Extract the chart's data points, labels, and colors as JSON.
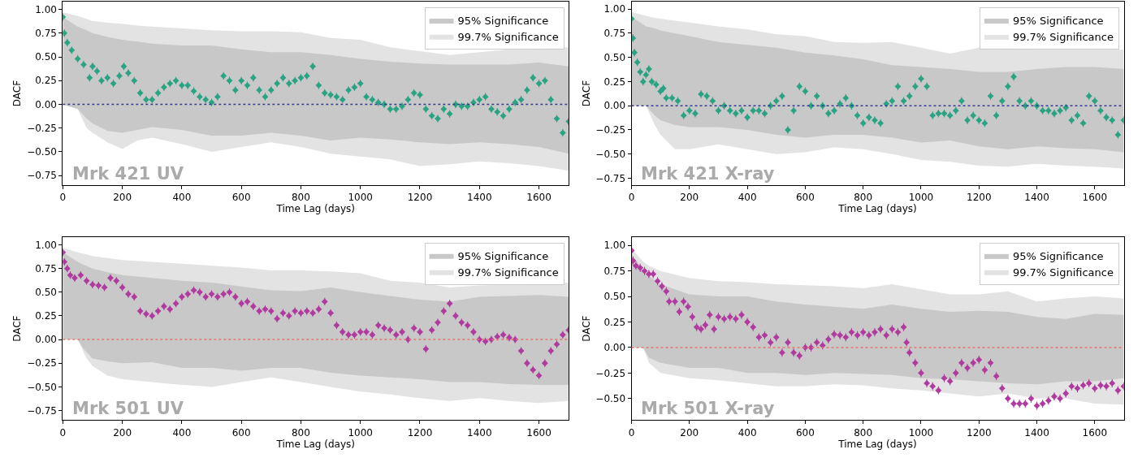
{
  "chart_data": [
    {
      "type": "scatter",
      "xlabel": "Time Lag (days)",
      "ylabel": "DACF",
      "xlim": [
        0,
        1700
      ],
      "xticks": [
        0,
        200,
        400,
        600,
        800,
        1000,
        1200,
        1400,
        1600
      ],
      "ylim": [
        -0.85,
        1.08
      ],
      "yticks": [
        {
          "value": -0.75,
          "label": "−0.75"
        },
        {
          "value": -0.5,
          "label": "−0.50"
        },
        {
          "value": -0.25,
          "label": "−0.25"
        },
        {
          "value": 0,
          "label": "0.00"
        },
        {
          "value": 0.25,
          "label": "0.25"
        },
        {
          "value": 0.5,
          "label": "0.50"
        },
        {
          "value": 0.75,
          "label": "0.75"
        },
        {
          "value": 1,
          "label": "1.00"
        }
      ],
      "grid": false,
      "legend": "top right",
      "annotations": [
        "Mrk 421 UV"
      ],
      "ref_lines": [
        {
          "axis": "y",
          "value": 0,
          "color": "#353a8c",
          "line_style": "dotted"
        }
      ],
      "series": [
        {
          "name": "99.7% Significance",
          "type": "area",
          "color": "#e3e3e3",
          "x": [
            0,
            50,
            80,
            100,
            150,
            200,
            250,
            300,
            400,
            500,
            600,
            700,
            800,
            900,
            1000,
            1100,
            1200,
            1300,
            1400,
            1500,
            1600,
            1700
          ],
          "values": [
            0.97,
            0.93,
            0.9,
            0.88,
            0.86,
            0.85,
            0.83,
            0.82,
            0.8,
            0.78,
            0.77,
            0.77,
            0.76,
            0.7,
            0.68,
            0.6,
            0.56,
            0.52,
            0.55,
            0.58,
            null,
            0.6
          ]
        },
        {
          "type": "area",
          "color": "#e3e3e3",
          "x": [
            0,
            50,
            80,
            100,
            150,
            200,
            250,
            300,
            400,
            500,
            600,
            700,
            800,
            900,
            1000,
            1100,
            1200,
            1300,
            1400,
            1500,
            1600,
            1700
          ],
          "values": [
            0.0,
            -0.05,
            -0.25,
            -0.3,
            -0.4,
            -0.47,
            -0.38,
            -0.35,
            -0.42,
            -0.5,
            -0.45,
            -0.4,
            -0.45,
            -0.52,
            -0.55,
            -0.58,
            -0.65,
            -0.63,
            -0.6,
            -0.62,
            -0.65,
            -0.7
          ]
        },
        {
          "name": "95% Significance",
          "type": "area",
          "color": "#c8c8c8",
          "x": [
            0,
            50,
            80,
            100,
            150,
            200,
            250,
            300,
            400,
            500,
            600,
            700,
            800,
            900,
            1000,
            1100,
            1200,
            1300,
            1400,
            1500,
            1600,
            1700
          ],
          "values": [
            0.92,
            0.82,
            0.78,
            0.75,
            0.71,
            0.68,
            0.66,
            0.64,
            0.62,
            0.62,
            0.58,
            0.55,
            0.55,
            0.52,
            0.48,
            0.45,
            0.43,
            0.42,
            0.42,
            0.42,
            0.44,
            0.4
          ]
        },
        {
          "type": "area",
          "color": "#c8c8c8",
          "x": [
            0,
            50,
            80,
            100,
            150,
            200,
            250,
            300,
            400,
            500,
            600,
            700,
            800,
            900,
            1000,
            1100,
            1200,
            1300,
            1400,
            1500,
            1600,
            1700
          ],
          "values": [
            0.0,
            -0.05,
            -0.15,
            -0.2,
            -0.28,
            -0.3,
            -0.27,
            -0.24,
            -0.27,
            -0.33,
            -0.33,
            -0.3,
            -0.33,
            -0.38,
            -0.35,
            -0.37,
            -0.4,
            -0.42,
            -0.4,
            -0.42,
            -0.45,
            -0.52
          ]
        },
        {
          "color": "#2aa383",
          "marker": "diamond",
          "x": [
            0,
            5,
            15,
            30,
            50,
            70,
            90,
            100,
            115,
            130,
            150,
            170,
            190,
            205,
            220,
            240,
            260,
            280,
            300,
            320,
            340,
            360,
            380,
            400,
            420,
            440,
            460,
            480,
            500,
            520,
            540,
            560,
            580,
            600,
            620,
            640,
            660,
            680,
            700,
            720,
            740,
            760,
            780,
            800,
            820,
            840,
            860,
            880,
            900,
            920,
            940,
            960,
            980,
            1000,
            1020,
            1040,
            1060,
            1080,
            1100,
            1120,
            1140,
            1160,
            1180,
            1200,
            1220,
            1240,
            1260,
            1280,
            1300,
            1320,
            1340,
            1360,
            1380,
            1400,
            1420,
            1440,
            1460,
            1480,
            1500,
            1520,
            1540,
            1560,
            1580,
            1600,
            1620,
            1640,
            1660,
            1680,
            1700
          ],
          "values": [
            0.92,
            0.75,
            0.65,
            0.57,
            0.48,
            0.42,
            0.28,
            0.4,
            0.35,
            0.25,
            0.28,
            0.22,
            0.3,
            0.4,
            0.33,
            0.25,
            0.12,
            0.05,
            0.05,
            0.12,
            0.18,
            0.22,
            0.25,
            0.2,
            0.2,
            0.14,
            0.08,
            0.05,
            0.02,
            0.08,
            0.3,
            0.25,
            0.15,
            0.25,
            0.2,
            0.28,
            0.15,
            0.08,
            0.15,
            0.22,
            0.28,
            0.22,
            0.25,
            0.28,
            0.3,
            0.4,
            0.2,
            0.12,
            0.1,
            0.08,
            0.05,
            0.15,
            0.18,
            0.22,
            0.08,
            0.05,
            0.02,
            0.0,
            -0.05,
            -0.05,
            -0.02,
            0.05,
            0.12,
            0.1,
            -0.05,
            -0.12,
            -0.15,
            -0.05,
            -0.1,
            0.0,
            -0.02,
            -0.02,
            0.02,
            0.05,
            0.08,
            -0.05,
            -0.08,
            -0.12,
            -0.05,
            0.02,
            0.05,
            0.15,
            0.28,
            0.22,
            0.25,
            0.05,
            -0.15,
            -0.3,
            -0.18
          ],
          "errors": [
            0.04,
            0.04,
            0.04,
            0.04,
            0.04,
            0.04,
            0.04,
            0.04,
            0.04,
            0.04,
            0.04,
            0.04,
            0.04,
            0.04,
            0.04,
            0.04,
            0.04,
            0.04,
            0.04,
            0.04,
            0.04,
            0.04,
            0.04,
            0.04,
            0.04,
            0.04,
            0.04,
            0.04,
            0.04,
            0.04,
            0.04,
            0.04,
            0.04,
            0.04,
            0.04,
            0.04,
            0.04,
            0.04,
            0.04,
            0.04,
            0.04,
            0.04,
            0.04,
            0.04,
            0.04,
            0.04,
            0.04,
            0.04,
            0.04,
            0.04,
            0.04,
            0.04,
            0.04,
            0.04,
            0.04,
            0.04,
            0.04,
            0.04,
            0.04,
            0.04,
            0.04,
            0.04,
            0.04,
            0.04,
            0.04,
            0.04,
            0.04,
            0.04,
            0.04,
            0.04,
            0.04,
            0.04,
            0.04,
            0.04,
            0.04,
            0.04,
            0.04,
            0.04,
            0.04,
            0.04,
            0.04,
            0.04,
            0.04,
            0.04,
            0.04,
            0.04,
            0.04,
            0.04,
            0.04
          ]
        }
      ]
    },
    {
      "type": "scatter",
      "xlabel": "Time Lag (days)",
      "ylabel": "DACF",
      "xlim": [
        0,
        1700
      ],
      "xticks": [
        0,
        200,
        400,
        600,
        800,
        1000,
        1200,
        1400,
        1600
      ],
      "ylim": [
        -0.82,
        1.075
      ],
      "yticks": [
        {
          "value": -0.75,
          "label": "−0.75"
        },
        {
          "value": -0.5,
          "label": "−0.50"
        },
        {
          "value": -0.25,
          "label": "−0.25"
        },
        {
          "value": 0,
          "label": "0.00"
        },
        {
          "value": 0.25,
          "label": "0.25"
        },
        {
          "value": 0.5,
          "label": "0.50"
        },
        {
          "value": 0.75,
          "label": "0.75"
        },
        {
          "value": 1,
          "label": "1.00"
        }
      ],
      "grid": false,
      "legend": "top right",
      "annotations": [
        "Mrk 421 X-ray"
      ],
      "ref_lines": [
        {
          "axis": "y",
          "value": 0,
          "color": "#353a8c",
          "line_style": "dotted"
        }
      ],
      "series": [
        {
          "name": "99.7% Significance",
          "type": "area",
          "color": "#e3e3e3",
          "x": [
            0,
            50,
            80,
            100,
            150,
            200,
            300,
            400,
            500,
            600,
            700,
            800,
            900,
            1000,
            1100,
            1200,
            1300,
            1400,
            1500,
            1600,
            1700
          ],
          "values": [
            0.97,
            0.93,
            0.91,
            0.9,
            0.88,
            0.86,
            0.82,
            0.79,
            0.74,
            0.72,
            0.66,
            0.65,
            0.66,
            0.6,
            0.54,
            0.6,
            null,
            null,
            null,
            null,
            0.58
          ]
        },
        {
          "type": "area",
          "color": "#e3e3e3",
          "x": [
            0,
            50,
            80,
            100,
            150,
            200,
            300,
            400,
            500,
            600,
            700,
            800,
            900,
            1000,
            1100,
            1200,
            1300,
            1400,
            1500,
            1600,
            1700
          ],
          "values": [
            0.0,
            0.0,
            -0.2,
            -0.3,
            -0.45,
            -0.45,
            -0.4,
            -0.45,
            -0.5,
            -0.48,
            -0.43,
            -0.45,
            -0.5,
            -0.56,
            -0.58,
            -0.62,
            -0.63,
            -0.6,
            -0.62,
            -0.63,
            -0.65
          ]
        },
        {
          "name": "95% Significance",
          "type": "area",
          "color": "#c8c8c8",
          "x": [
            0,
            50,
            80,
            100,
            150,
            200,
            300,
            400,
            500,
            600,
            700,
            800,
            900,
            1000,
            1100,
            1200,
            1300,
            1400,
            1500,
            1600,
            1700
          ],
          "values": [
            0.92,
            0.82,
            0.8,
            0.78,
            0.75,
            0.72,
            0.66,
            0.63,
            0.6,
            0.55,
            0.52,
            0.48,
            0.42,
            0.4,
            0.38,
            0.35,
            0.35,
            0.38,
            0.4,
            0.4,
            0.38
          ]
        },
        {
          "type": "area",
          "color": "#c8c8c8",
          "x": [
            0,
            50,
            80,
            100,
            150,
            200,
            300,
            400,
            500,
            600,
            700,
            800,
            900,
            1000,
            1100,
            1200,
            1300,
            1400,
            1500,
            1600,
            1700
          ],
          "values": [
            0.0,
            0.0,
            -0.1,
            -0.15,
            -0.2,
            -0.22,
            -0.22,
            -0.25,
            -0.3,
            -0.33,
            -0.3,
            -0.3,
            -0.33,
            -0.38,
            -0.36,
            -0.42,
            -0.45,
            -0.42,
            -0.44,
            -0.45,
            -0.48
          ]
        },
        {
          "color": "#2aa383",
          "marker": "diamond",
          "x": [
            0,
            5,
            10,
            20,
            30,
            40,
            50,
            60,
            70,
            85,
            100,
            110,
            120,
            140,
            160,
            180,
            200,
            220,
            240,
            260,
            280,
            300,
            320,
            340,
            360,
            380,
            400,
            420,
            440,
            460,
            480,
            500,
            520,
            540,
            560,
            580,
            600,
            620,
            640,
            660,
            680,
            700,
            720,
            740,
            760,
            780,
            800,
            820,
            840,
            860,
            880,
            900,
            920,
            940,
            960,
            980,
            1000,
            1020,
            1040,
            1060,
            1080,
            1100,
            1120,
            1140,
            1160,
            1180,
            1200,
            1220,
            1240,
            1260,
            1280,
            1300,
            1320,
            1340,
            1360,
            1380,
            1400,
            1420,
            1440,
            1460,
            1480,
            1500,
            1520,
            1540,
            1560,
            1580,
            1600,
            1620,
            1640,
            1660,
            1680,
            1700
          ],
          "values": [
            0.9,
            0.7,
            0.55,
            0.45,
            0.35,
            0.25,
            0.32,
            0.38,
            0.25,
            0.22,
            0.15,
            0.18,
            0.08,
            0.08,
            0.05,
            -0.1,
            -0.05,
            -0.08,
            0.12,
            0.1,
            0.05,
            -0.05,
            0.0,
            -0.05,
            -0.08,
            -0.05,
            -0.12,
            -0.05,
            -0.05,
            -0.08,
            0.0,
            0.05,
            0.1,
            -0.25,
            -0.05,
            0.2,
            0.15,
            0.0,
            0.1,
            0.0,
            -0.08,
            -0.05,
            0.02,
            0.08,
            0.0,
            -0.1,
            -0.18,
            -0.12,
            -0.15,
            -0.18,
            0.02,
            0.05,
            0.2,
            0.05,
            0.1,
            0.2,
            0.28,
            0.2,
            -0.1,
            -0.08,
            -0.08,
            -0.1,
            -0.05,
            0.05,
            -0.15,
            -0.1,
            -0.15,
            -0.18,
            0.1,
            -0.1,
            0.05,
            0.2,
            0.3,
            0.05,
            0.0,
            0.05,
            0.0,
            -0.05,
            -0.05,
            -0.08,
            -0.05,
            -0.02,
            -0.15,
            -0.1,
            -0.18,
            0.1,
            0.05,
            -0.05,
            -0.12,
            -0.15,
            -0.3,
            -0.15
          ],
          "errors": [
            0.04,
            0.04,
            0.04,
            0.04,
            0.04,
            0.04,
            0.04,
            0.04,
            0.04,
            0.04,
            0.04,
            0.04,
            0.04,
            0.04,
            0.04,
            0.04,
            0.04,
            0.04,
            0.04,
            0.04,
            0.04,
            0.04,
            0.04,
            0.04,
            0.04,
            0.04,
            0.04,
            0.04,
            0.04,
            0.04,
            0.04,
            0.04,
            0.04,
            0.04,
            0.04,
            0.04,
            0.04,
            0.04,
            0.04,
            0.04,
            0.04,
            0.04,
            0.04,
            0.04,
            0.04,
            0.04,
            0.04,
            0.04,
            0.04,
            0.04,
            0.04,
            0.04,
            0.04,
            0.04,
            0.04,
            0.04,
            0.04,
            0.04,
            0.04,
            0.04,
            0.04,
            0.04,
            0.04,
            0.04,
            0.04,
            0.04,
            0.04,
            0.04,
            0.04,
            0.04,
            0.04,
            0.04,
            0.04,
            0.04,
            0.04,
            0.04,
            0.04,
            0.04,
            0.04,
            0.04,
            0.04,
            0.04,
            0.04,
            0.04,
            0.04,
            0.04,
            0.04,
            0.04,
            0.04,
            0.04,
            0.04,
            0.04
          ]
        }
      ]
    },
    {
      "type": "scatter",
      "xlabel": "Time Lag (days)",
      "ylabel": "DACF",
      "xlim": [
        0,
        1700
      ],
      "xticks": [
        0,
        200,
        400,
        600,
        800,
        1000,
        1200,
        1400,
        1600
      ],
      "ylim": [
        -0.85,
        1.08
      ],
      "yticks": [
        {
          "value": -0.75,
          "label": "−0.75"
        },
        {
          "value": -0.5,
          "label": "−0.50"
        },
        {
          "value": -0.25,
          "label": "−0.25"
        },
        {
          "value": 0,
          "label": "0.00"
        },
        {
          "value": 0.25,
          "label": "0.25"
        },
        {
          "value": 0.5,
          "label": "0.50"
        },
        {
          "value": 0.75,
          "label": "0.75"
        },
        {
          "value": 1,
          "label": "1.00"
        }
      ],
      "grid": false,
      "legend": "top right",
      "annotations": [
        "Mrk 501 UV"
      ],
      "ref_lines": [
        {
          "axis": "y",
          "value": 0,
          "color": "#e8736a",
          "line_style": "dotted"
        }
      ],
      "series": [
        {
          "name": "99.7% Significance",
          "type": "area",
          "color": "#e3e3e3",
          "x": [
            0,
            50,
            80,
            100,
            150,
            200,
            300,
            400,
            500,
            600,
            700,
            800,
            900,
            1000,
            1100,
            1200,
            1300,
            1400,
            1500,
            1600,
            1700
          ],
          "values": [
            0.97,
            0.92,
            0.9,
            0.88,
            0.86,
            0.84,
            0.82,
            0.8,
            0.78,
            0.76,
            0.73,
            0.73,
            0.72,
            0.7,
            0.62,
            0.6,
            0.55,
            0.57,
            null,
            null,
            0.6
          ]
        },
        {
          "type": "area",
          "color": "#e3e3e3",
          "x": [
            0,
            50,
            80,
            100,
            150,
            200,
            300,
            400,
            500,
            600,
            700,
            800,
            900,
            1000,
            1100,
            1200,
            1300,
            1400,
            1500,
            1600,
            1700
          ],
          "values": [
            0.0,
            0.0,
            -0.2,
            -0.28,
            -0.38,
            -0.42,
            -0.45,
            -0.48,
            -0.5,
            -0.45,
            -0.4,
            -0.45,
            -0.5,
            -0.55,
            -0.58,
            -0.62,
            -0.65,
            -0.62,
            -0.65,
            -0.67,
            -0.65
          ]
        },
        {
          "name": "95% Significance",
          "type": "area",
          "color": "#c8c8c8",
          "x": [
            0,
            50,
            70,
            100,
            150,
            200,
            300,
            400,
            500,
            600,
            700,
            800,
            900,
            1000,
            1100,
            1200,
            1300,
            1400,
            1500,
            1600,
            1700
          ],
          "values": [
            0.92,
            0.82,
            0.79,
            0.75,
            0.71,
            0.68,
            0.65,
            0.62,
            0.6,
            0.56,
            0.52,
            0.51,
            0.55,
            0.5,
            0.46,
            0.42,
            0.4,
            0.45,
            0.46,
            0.47,
            0.45
          ]
        },
        {
          "type": "area",
          "color": "#c8c8c8",
          "x": [
            0,
            50,
            70,
            100,
            150,
            200,
            300,
            400,
            500,
            600,
            700,
            800,
            900,
            1000,
            1100,
            1200,
            1300,
            1400,
            1500,
            1600,
            1700
          ],
          "values": [
            0.0,
            0.0,
            -0.1,
            -0.2,
            -0.23,
            -0.25,
            -0.24,
            -0.3,
            -0.3,
            -0.33,
            -0.3,
            -0.3,
            -0.35,
            -0.38,
            -0.4,
            -0.42,
            -0.45,
            -0.45,
            -0.47,
            -0.48,
            -0.48
          ]
        },
        {
          "color": "#b03a9e",
          "marker": "diamond",
          "x": [
            0,
            5,
            15,
            25,
            40,
            60,
            80,
            100,
            120,
            140,
            160,
            180,
            200,
            220,
            240,
            260,
            280,
            300,
            320,
            340,
            360,
            380,
            400,
            420,
            440,
            460,
            480,
            500,
            520,
            540,
            560,
            580,
            600,
            620,
            640,
            660,
            680,
            700,
            720,
            740,
            760,
            780,
            800,
            820,
            840,
            860,
            880,
            900,
            920,
            940,
            960,
            980,
            1000,
            1020,
            1040,
            1060,
            1080,
            1100,
            1120,
            1140,
            1160,
            1180,
            1200,
            1220,
            1240,
            1260,
            1280,
            1300,
            1320,
            1340,
            1360,
            1380,
            1400,
            1420,
            1440,
            1460,
            1480,
            1500,
            1520,
            1540,
            1560,
            1580,
            1600,
            1620,
            1640,
            1660,
            1680,
            1700
          ],
          "values": [
            0.92,
            0.82,
            0.75,
            0.68,
            0.65,
            0.68,
            0.62,
            0.58,
            0.57,
            0.55,
            0.65,
            0.62,
            0.55,
            0.48,
            0.45,
            0.3,
            0.27,
            0.25,
            0.3,
            0.35,
            0.32,
            0.38,
            0.45,
            0.48,
            0.52,
            0.5,
            0.45,
            0.48,
            0.45,
            0.48,
            0.5,
            0.45,
            0.38,
            0.4,
            0.35,
            0.3,
            0.32,
            0.3,
            0.22,
            0.28,
            0.25,
            0.3,
            0.28,
            0.3,
            0.28,
            0.32,
            0.4,
            0.28,
            0.15,
            0.08,
            0.05,
            0.05,
            0.08,
            0.08,
            0.05,
            0.15,
            0.12,
            0.1,
            0.05,
            0.08,
            0.0,
            0.12,
            0.08,
            -0.1,
            0.1,
            0.18,
            0.3,
            0.38,
            0.25,
            0.18,
            0.15,
            0.08,
            0.0,
            -0.02,
            0.0,
            0.03,
            0.05,
            0.02,
            0.0,
            -0.12,
            -0.25,
            -0.32,
            -0.38,
            -0.25,
            -0.12,
            -0.05,
            0.05,
            0.1
          ],
          "errors": [
            0.04,
            0.04,
            0.04,
            0.04,
            0.04,
            0.04,
            0.04,
            0.04,
            0.04,
            0.04,
            0.04,
            0.04,
            0.04,
            0.04,
            0.04,
            0.04,
            0.04,
            0.04,
            0.04,
            0.04,
            0.04,
            0.04,
            0.04,
            0.04,
            0.04,
            0.04,
            0.04,
            0.04,
            0.04,
            0.04,
            0.04,
            0.04,
            0.04,
            0.04,
            0.04,
            0.04,
            0.04,
            0.04,
            0.04,
            0.04,
            0.04,
            0.04,
            0.04,
            0.04,
            0.04,
            0.04,
            0.04,
            0.04,
            0.04,
            0.04,
            0.04,
            0.04,
            0.04,
            0.04,
            0.04,
            0.04,
            0.04,
            0.04,
            0.04,
            0.04,
            0.04,
            0.04,
            0.04,
            0.04,
            0.04,
            0.04,
            0.04,
            0.04,
            0.04,
            0.04,
            0.04,
            0.04,
            0.04,
            0.04,
            0.04,
            0.04,
            0.04,
            0.04,
            0.04,
            0.04,
            0.04,
            0.04,
            0.04,
            0.04,
            0.04,
            0.04,
            0.04,
            0.04
          ]
        }
      ]
    },
    {
      "type": "scatter",
      "xlabel": "Time Lag (days)",
      "ylabel": "DACF",
      "xlim": [
        0,
        1700
      ],
      "xticks": [
        0,
        200,
        400,
        600,
        800,
        1000,
        1200,
        1400,
        1600
      ],
      "ylim": [
        -0.71,
        1.08
      ],
      "yticks": [
        {
          "value": -0.5,
          "label": "−0.50"
        },
        {
          "value": -0.25,
          "label": "−0.25"
        },
        {
          "value": 0,
          "label": "0.00"
        },
        {
          "value": 0.25,
          "label": "0.25"
        },
        {
          "value": 0.5,
          "label": "0.50"
        },
        {
          "value": 0.75,
          "label": "0.75"
        },
        {
          "value": 1,
          "label": "1.00"
        }
      ],
      "grid": false,
      "legend": "top right",
      "annotations": [
        "Mrk 501 X-ray"
      ],
      "ref_lines": [
        {
          "axis": "y",
          "value": 0,
          "color": "#e8736a",
          "line_style": "dotted"
        }
      ],
      "series": [
        {
          "name": "99.7% Significance",
          "type": "area",
          "color": "#e3e3e3",
          "x": [
            0,
            40,
            60,
            100,
            200,
            300,
            400,
            500,
            600,
            700,
            800,
            900,
            1000,
            1100,
            1200,
            1300,
            1400,
            1500,
            1600,
            1700
          ],
          "values": [
            0.97,
            0.84,
            0.8,
            0.75,
            0.68,
            0.65,
            0.64,
            0.62,
            0.61,
            0.6,
            0.58,
            0.62,
            0.57,
            0.52,
            0.52,
            0.55,
            0.45,
            0.48,
            0.5,
            0.48
          ]
        },
        {
          "type": "area",
          "color": "#e3e3e3",
          "x": [
            0,
            40,
            60,
            100,
            200,
            300,
            400,
            500,
            600,
            700,
            800,
            900,
            1000,
            1100,
            1200,
            1300,
            1400,
            1500,
            1600,
            1700
          ],
          "values": [
            0.0,
            0.0,
            -0.15,
            -0.25,
            -0.3,
            -0.32,
            -0.35,
            -0.38,
            -0.38,
            -0.36,
            -0.37,
            -0.4,
            -0.42,
            -0.45,
            -0.48,
            -0.45,
            -0.5,
            -0.5,
            -0.55,
            -0.56
          ]
        },
        {
          "name": "95% Significance",
          "type": "area",
          "color": "#c8c8c8",
          "x": [
            0,
            40,
            60,
            100,
            200,
            300,
            400,
            500,
            600,
            700,
            800,
            900,
            1000,
            1100,
            1200,
            1300,
            1400,
            1500,
            1600,
            1700
          ],
          "values": [
            0.92,
            0.76,
            0.7,
            0.62,
            0.52,
            0.5,
            0.5,
            0.45,
            0.42,
            0.4,
            0.38,
            0.42,
            0.38,
            0.35,
            0.36,
            0.35,
            0.3,
            0.28,
            0.33,
            0.32
          ]
        },
        {
          "type": "area",
          "color": "#c8c8c8",
          "x": [
            0,
            40,
            60,
            100,
            200,
            300,
            400,
            500,
            600,
            700,
            800,
            900,
            1000,
            1100,
            1200,
            1300,
            1400,
            1500,
            1600,
            1700
          ],
          "values": [
            0.0,
            0.0,
            -0.1,
            -0.15,
            -0.2,
            -0.2,
            -0.25,
            -0.25,
            -0.27,
            -0.25,
            -0.26,
            -0.27,
            -0.3,
            -0.31,
            -0.33,
            -0.35,
            -0.36,
            -0.33,
            -0.33,
            -0.3
          ]
        },
        {
          "color": "#b03a9e",
          "marker": "diamond",
          "x": [
            0,
            5,
            15,
            30,
            45,
            60,
            75,
            90,
            105,
            120,
            130,
            150,
            165,
            180,
            195,
            210,
            225,
            240,
            255,
            270,
            285,
            300,
            320,
            340,
            360,
            380,
            400,
            420,
            440,
            460,
            480,
            500,
            520,
            540,
            560,
            580,
            600,
            620,
            640,
            660,
            680,
            700,
            720,
            740,
            760,
            780,
            800,
            820,
            840,
            860,
            880,
            900,
            920,
            940,
            950,
            960,
            980,
            1000,
            1020,
            1040,
            1060,
            1080,
            1100,
            1120,
            1140,
            1160,
            1180,
            1200,
            1220,
            1240,
            1260,
            1280,
            1300,
            1320,
            1340,
            1360,
            1380,
            1400,
            1420,
            1440,
            1460,
            1480,
            1500,
            1520,
            1540,
            1560,
            1580,
            1600,
            1620,
            1640,
            1660,
            1680,
            1700
          ],
          "values": [
            0.95,
            0.85,
            0.8,
            0.78,
            0.75,
            0.72,
            0.72,
            0.65,
            0.6,
            0.55,
            0.45,
            0.45,
            0.35,
            0.45,
            0.4,
            0.3,
            0.2,
            0.18,
            0.22,
            0.32,
            0.18,
            0.3,
            0.28,
            0.3,
            0.28,
            0.32,
            0.25,
            0.2,
            0.1,
            0.12,
            0.05,
            0.1,
            -0.05,
            0.05,
            -0.05,
            -0.08,
            0.0,
            0.0,
            0.05,
            0.02,
            0.08,
            0.13,
            0.12,
            0.1,
            0.15,
            0.12,
            0.15,
            0.12,
            0.15,
            0.18,
            0.12,
            0.18,
            0.15,
            0.2,
            0.05,
            -0.05,
            -0.15,
            -0.25,
            -0.35,
            -0.38,
            -0.42,
            -0.3,
            -0.33,
            -0.25,
            -0.15,
            -0.2,
            -0.15,
            -0.12,
            -0.22,
            -0.15,
            -0.28,
            -0.4,
            -0.5,
            -0.55,
            -0.55,
            -0.55,
            -0.5,
            -0.57,
            -0.55,
            -0.52,
            -0.48,
            -0.5,
            -0.45,
            -0.38,
            -0.4,
            -0.37,
            -0.35,
            -0.4,
            -0.37,
            -0.38,
            -0.35,
            -0.42,
            -0.38
          ],
          "errors": [
            0.04,
            0.04,
            0.04,
            0.04,
            0.04,
            0.04,
            0.04,
            0.04,
            0.04,
            0.04,
            0.04,
            0.04,
            0.04,
            0.04,
            0.04,
            0.04,
            0.04,
            0.04,
            0.04,
            0.04,
            0.04,
            0.04,
            0.04,
            0.04,
            0.04,
            0.04,
            0.04,
            0.04,
            0.04,
            0.04,
            0.04,
            0.04,
            0.04,
            0.04,
            0.04,
            0.04,
            0.04,
            0.04,
            0.04,
            0.04,
            0.04,
            0.04,
            0.04,
            0.04,
            0.04,
            0.04,
            0.04,
            0.04,
            0.04,
            0.04,
            0.04,
            0.04,
            0.04,
            0.04,
            0.04,
            0.04,
            0.04,
            0.04,
            0.04,
            0.04,
            0.04,
            0.04,
            0.04,
            0.04,
            0.04,
            0.04,
            0.04,
            0.04,
            0.04,
            0.04,
            0.04,
            0.04,
            0.04,
            0.04,
            0.04,
            0.04,
            0.04,
            0.04,
            0.04,
            0.04,
            0.04,
            0.04,
            0.04,
            0.04,
            0.04,
            0.04,
            0.04,
            0.04,
            0.04,
            0.04,
            0.04,
            0.04,
            0.04
          ]
        }
      ]
    }
  ]
}
